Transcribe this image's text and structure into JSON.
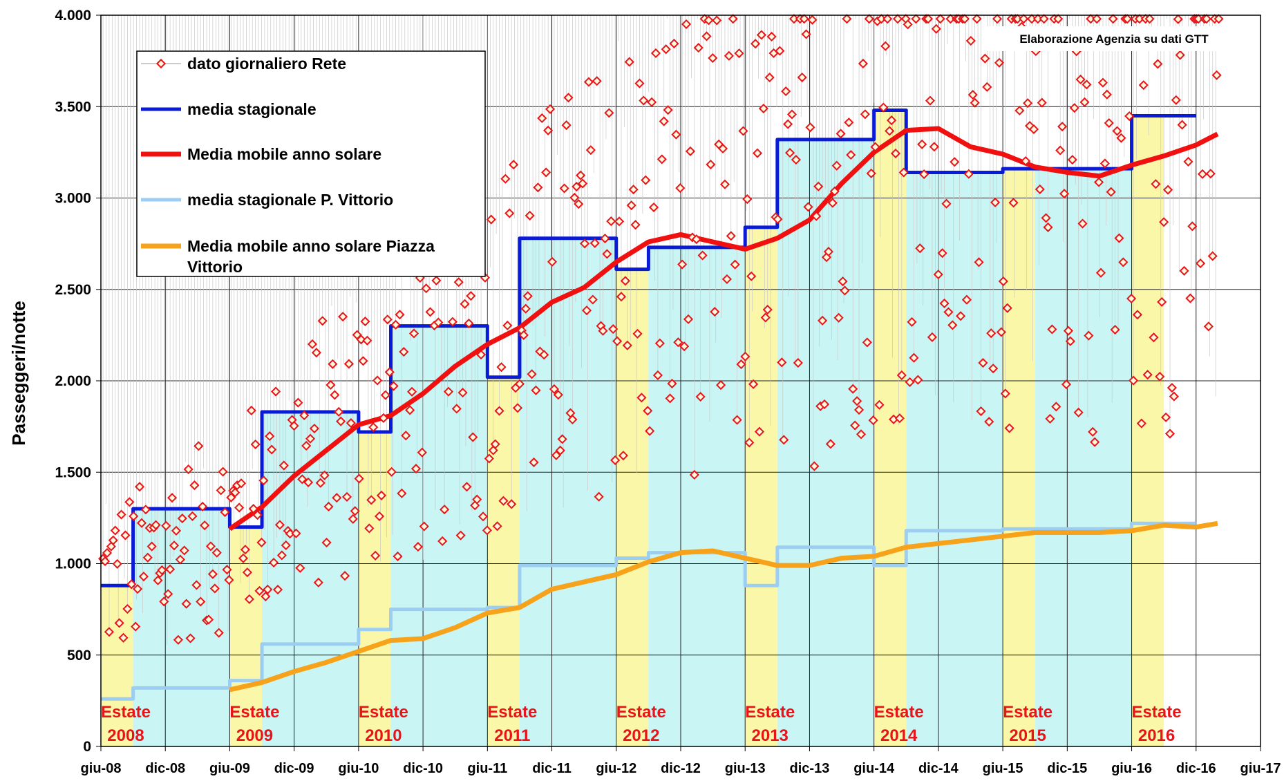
{
  "chart_data": {
    "type": "line",
    "title": "",
    "ylabel": "Passeggeri/notte",
    "xlabel": "",
    "source_note": "Elaborazione Agenzia su dati GTT",
    "x_tick_labels": [
      "giu-08",
      "dic-08",
      "giu-09",
      "dic-09",
      "giu-10",
      "dic-10",
      "giu-11",
      "dic-11",
      "giu-12",
      "dic-12",
      "giu-13",
      "dic-13",
      "giu-14",
      "dic-14",
      "giu-15",
      "dic-15",
      "giu-16",
      "dic-16",
      "giu-17"
    ],
    "xlim": [
      "2008-06",
      "2017-06"
    ],
    "ylim": [
      0,
      4000
    ],
    "y_ticks": [
      0,
      500,
      1000,
      1500,
      2000,
      2500,
      3000,
      3500,
      4000
    ],
    "y_tick_labels": [
      "0",
      "500",
      "1.000",
      "1.500",
      "2.000",
      "2.500",
      "3.000",
      "3.500",
      "4.000"
    ],
    "grid": true,
    "legend_position": "top-left",
    "legend": [
      {
        "label": "dato giornaliero Rete",
        "color": "#e8141b",
        "kind": "marker"
      },
      {
        "label": "media stagionale",
        "color": "#0a1bd6",
        "kind": "line"
      },
      {
        "label": "Media mobile anno solare",
        "color": "#f01010",
        "kind": "thick-line"
      },
      {
        "label": "media stagionale P. Vittorio",
        "color": "#9ccdf3",
        "kind": "line"
      },
      {
        "label": "Media mobile anno solare Piazza Vittorio",
        "color": "#f7a21b",
        "kind": "thick-line"
      }
    ],
    "summer_periods": [
      {
        "label1": "Estate",
        "label2": "2008",
        "start": "2008-06",
        "end": "2008-09",
        "season_value": 880
      },
      {
        "label1": "Estate",
        "label2": "2009",
        "start": "2009-06",
        "end": "2009-09",
        "season_value": 1200
      },
      {
        "label1": "Estate",
        "label2": "2010",
        "start": "2010-06",
        "end": "2010-09",
        "season_value": 1720
      },
      {
        "label1": "Estate",
        "label2": "2011",
        "start": "2011-06",
        "end": "2011-09",
        "season_value": 2020
      },
      {
        "label1": "Estate",
        "label2": "2012",
        "start": "2012-06",
        "end": "2012-09",
        "season_value": 2610
      },
      {
        "label1": "Estate",
        "label2": "2013",
        "start": "2013-06",
        "end": "2013-09",
        "season_value": 2840
      },
      {
        "label1": "Estate",
        "label2": "2014",
        "start": "2014-06",
        "end": "2014-09",
        "season_value": 3480
      },
      {
        "label1": "Estate",
        "label2": "2015",
        "start": "2015-06",
        "end": "2015-09",
        "season_value": 3160
      },
      {
        "label1": "Estate",
        "label2": "2016",
        "start": "2016-06",
        "end": "2016-09",
        "season_value": 3450
      }
    ],
    "series": [
      {
        "name": "media stagionale",
        "style": "step",
        "x": [
          "2008-06",
          "2008-09",
          "2009-06",
          "2009-09",
          "2010-06",
          "2010-09",
          "2011-06",
          "2011-09",
          "2012-06",
          "2012-09",
          "2013-06",
          "2013-09",
          "2014-06",
          "2014-09",
          "2015-06",
          "2015-09",
          "2016-06",
          "2016-09"
        ],
        "values": [
          880,
          1300,
          1200,
          1830,
          1720,
          2300,
          2020,
          2780,
          2610,
          2730,
          2840,
          3320,
          3480,
          3140,
          3160,
          3160,
          3450,
          3450
        ]
      },
      {
        "name": "media stagionale P. Vittorio",
        "style": "step",
        "x": [
          "2008-06",
          "2008-09",
          "2009-06",
          "2009-09",
          "2010-06",
          "2010-09",
          "2011-06",
          "2011-09",
          "2012-06",
          "2012-09",
          "2013-06",
          "2013-09",
          "2014-06",
          "2014-09",
          "2015-06",
          "2015-09",
          "2016-06",
          "2016-09"
        ],
        "values": [
          260,
          320,
          360,
          560,
          640,
          750,
          760,
          990,
          1030,
          1060,
          880,
          1090,
          990,
          1180,
          1190,
          1190,
          1220,
          1220
        ]
      },
      {
        "name": "Media mobile anno solare",
        "style": "line",
        "x": [
          "2009-06",
          "2009-09",
          "2009-12",
          "2010-03",
          "2010-06",
          "2010-09",
          "2010-12",
          "2011-03",
          "2011-06",
          "2011-09",
          "2011-12",
          "2012-03",
          "2012-06",
          "2012-09",
          "2012-12",
          "2013-03",
          "2013-06",
          "2013-09",
          "2013-12",
          "2014-03",
          "2014-06",
          "2014-09",
          "2014-12",
          "2015-03",
          "2015-06",
          "2015-09",
          "2015-12",
          "2016-03",
          "2016-06",
          "2016-09",
          "2016-12",
          "2017-02"
        ],
        "values": [
          1190,
          1310,
          1480,
          1620,
          1760,
          1810,
          1930,
          2080,
          2200,
          2290,
          2430,
          2510,
          2650,
          2760,
          2800,
          2760,
          2720,
          2780,
          2880,
          3080,
          3250,
          3370,
          3380,
          3280,
          3240,
          3170,
          3140,
          3120,
          3180,
          3230,
          3290,
          3350
        ]
      },
      {
        "name": "Media mobile anno solare Piazza Vittorio",
        "style": "line",
        "x": [
          "2009-06",
          "2009-09",
          "2009-12",
          "2010-03",
          "2010-06",
          "2010-09",
          "2010-12",
          "2011-03",
          "2011-06",
          "2011-09",
          "2011-12",
          "2012-03",
          "2012-06",
          "2012-09",
          "2012-12",
          "2013-03",
          "2013-06",
          "2013-09",
          "2013-12",
          "2014-03",
          "2014-06",
          "2014-09",
          "2014-12",
          "2015-03",
          "2015-06",
          "2015-09",
          "2015-12",
          "2016-03",
          "2016-06",
          "2016-09",
          "2016-12",
          "2017-02"
        ],
        "values": [
          310,
          350,
          410,
          460,
          520,
          580,
          590,
          650,
          730,
          760,
          860,
          900,
          940,
          1010,
          1060,
          1070,
          1030,
          990,
          990,
          1030,
          1040,
          1090,
          1110,
          1130,
          1150,
          1170,
          1170,
          1170,
          1180,
          1210,
          1200,
          1220
        ]
      }
    ]
  }
}
